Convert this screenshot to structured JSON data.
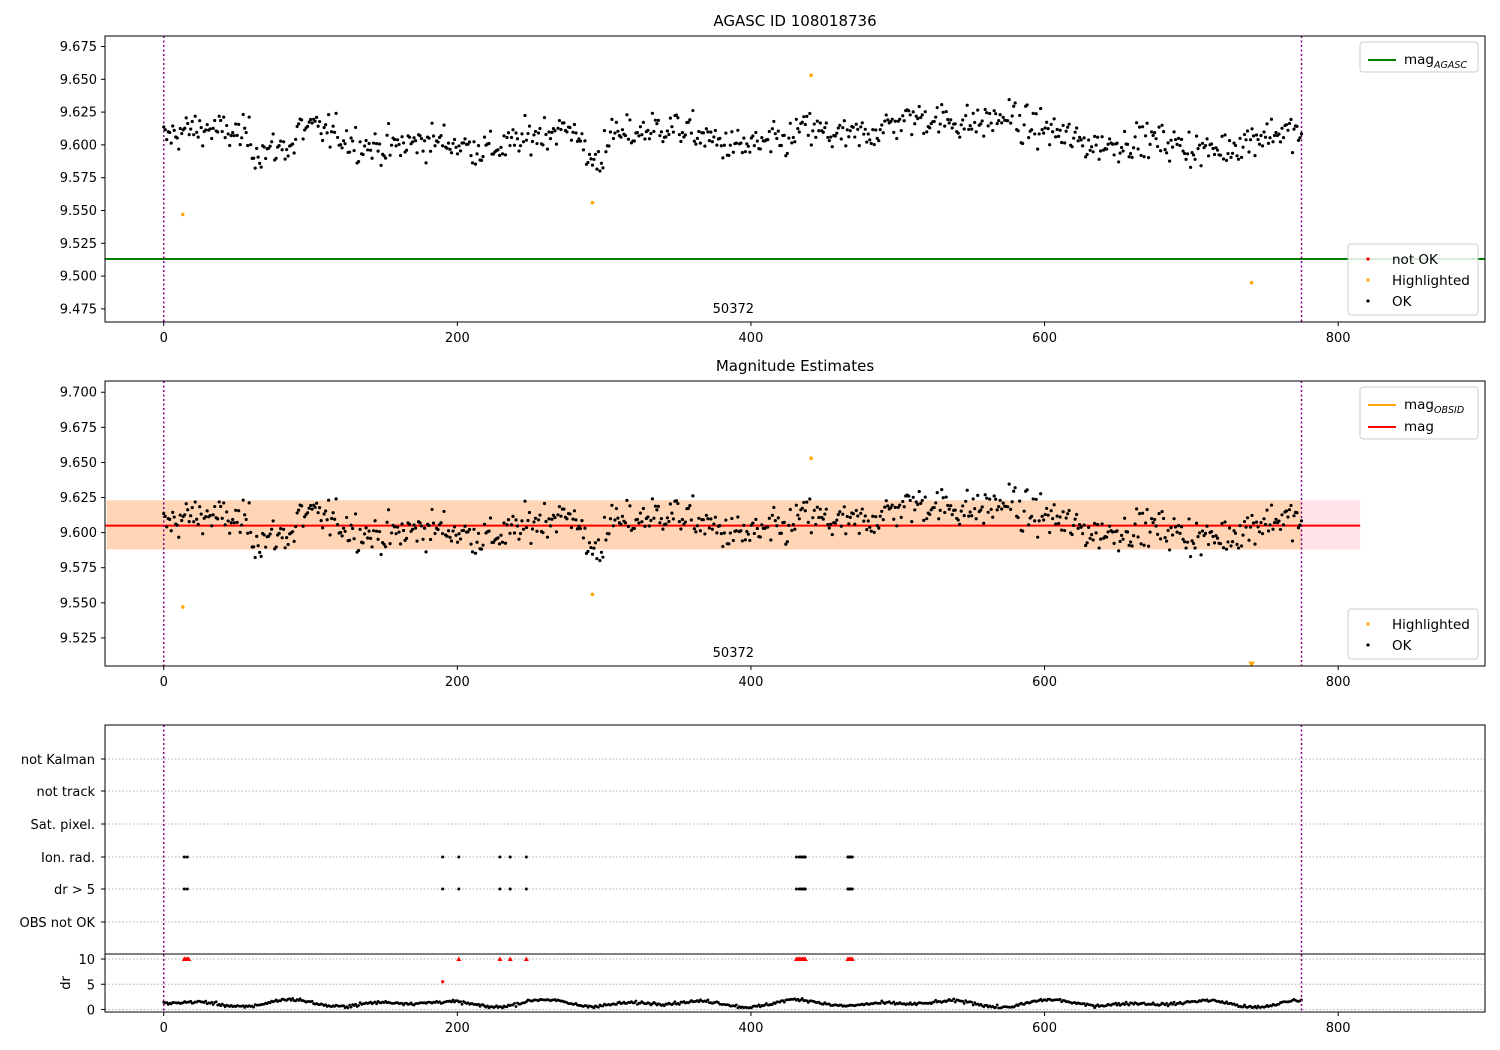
{
  "chart_data": [
    {
      "type": "scatter",
      "title": "AGASC ID 108018736",
      "xlim": [
        -40,
        900
      ],
      "ylim": [
        9.465,
        9.683
      ],
      "x_ticks": [
        0,
        200,
        400,
        600,
        800
      ],
      "y_ticks": [
        9.475,
        9.5,
        9.525,
        9.55,
        9.575,
        9.6,
        9.625,
        9.65,
        9.675
      ],
      "y_tick_labels": [
        "9.475",
        "9.500",
        "9.525",
        "9.550",
        "9.575",
        "9.600",
        "9.625",
        "9.650",
        "9.675"
      ],
      "obsid_label": "50372",
      "obsid_label_x": 388,
      "obsid_bounds": [
        0,
        775
      ],
      "mag_agasc": 9.513,
      "lines_legend": [
        {
          "name": "mag",
          "sub": "AGASC",
          "color": "#008000"
        }
      ],
      "points_legend": [
        {
          "name": "not OK",
          "color": "#ff0000"
        },
        {
          "name": "Highlighted",
          "color": "#ffa500"
        },
        {
          "name": "OK",
          "color": "#000000"
        }
      ],
      "highlighted_points": [
        {
          "x": 13,
          "y": 9.547
        },
        {
          "x": 292,
          "y": 9.556
        },
        {
          "x": 441,
          "y": 9.653
        },
        {
          "x": 741,
          "y": 9.495
        }
      ],
      "ok_series": {
        "n": 760,
        "x_range": [
          0,
          775
        ],
        "baseline": 9.605,
        "spread": 0.015
      }
    },
    {
      "type": "scatter",
      "title": "Magnitude Estimates",
      "xlim": [
        -40,
        900
      ],
      "ylim": [
        9.505,
        9.708
      ],
      "x_ticks": [
        0,
        200,
        400,
        600,
        800
      ],
      "y_ticks": [
        9.525,
        9.55,
        9.575,
        9.6,
        9.625,
        9.65,
        9.675,
        9.7
      ],
      "y_tick_labels": [
        "9.525",
        "9.550",
        "9.575",
        "9.600",
        "9.625",
        "9.650",
        "9.675",
        "9.700"
      ],
      "obsid_label": "50372",
      "obsid_label_x": 388,
      "obsid_bounds": [
        0,
        775
      ],
      "mag": 9.605,
      "mag_obsid": 9.605,
      "mag_band": [
        9.588,
        9.623
      ],
      "band_x_range": [
        0,
        815
      ],
      "lines_legend": [
        {
          "name": "mag",
          "sub": "OBSID",
          "color": "#ffa500"
        },
        {
          "name": "mag",
          "sub": "",
          "color": "#ff0000"
        }
      ],
      "points_legend": [
        {
          "name": "Highlighted",
          "color": "#ffa500"
        },
        {
          "name": "OK",
          "color": "#000000"
        }
      ],
      "highlighted_points": [
        {
          "x": 13,
          "y": 9.547
        },
        {
          "x": 292,
          "y": 9.556
        },
        {
          "x": 441,
          "y": 9.653
        }
      ],
      "offscale_marker": {
        "x": 741,
        "y": 9.506
      }
    },
    {
      "type": "scatter",
      "title": "",
      "xlim": [
        -40,
        900
      ],
      "x_ticks": [
        0,
        200,
        400,
        600,
        800
      ],
      "flag_categories": [
        "not Kalman",
        "not track",
        "Sat. pixel.",
        "Ion. rad.",
        "dr > 5",
        "OBS not OK"
      ],
      "flag_events": {
        "Ion. rad.": [
          14,
          16,
          190,
          201,
          229,
          236,
          247,
          431,
          433,
          434,
          435,
          436,
          437,
          466,
          467,
          468,
          469
        ],
        "dr > 5": [
          14,
          16,
          190,
          201,
          229,
          236,
          247,
          431,
          433,
          434,
          435,
          436,
          437,
          466,
          467,
          468,
          469
        ]
      },
      "dr": {
        "ylabel": "dr",
        "ylim": [
          -0.5,
          11
        ],
        "y_ticks": [
          0,
          5,
          10
        ],
        "y_tick_labels": [
          "0",
          "5",
          "10"
        ],
        "clipped_points": [
          14,
          15,
          16,
          17,
          201,
          229,
          236,
          247,
          431,
          432,
          433,
          434,
          435,
          436,
          437,
          466,
          467,
          468,
          469
        ],
        "outlier_points": [
          {
            "x": 190,
            "y": 5.5
          }
        ],
        "baseline_range": [
          0.3,
          2.3
        ]
      }
    }
  ]
}
